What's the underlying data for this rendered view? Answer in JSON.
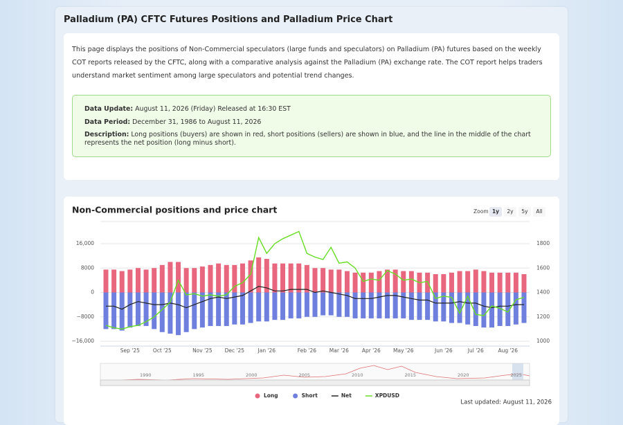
{
  "page": {
    "title": "Palladium (PA) CFTC Futures Positions and Palladium Price Chart",
    "intro": "This page displays the positions of Non-Commercial speculators (large funds and speculators) on Palladium (PA) futures based on the weekly COT reports released by the CFTC, along with a comparative analysis against the Palladium (PA) exchange rate. The COT report helps traders understand market sentiment among large speculators and potential trend changes.",
    "info": [
      {
        "label": "Data Update:",
        "text": "August 11, 2026 (Friday) Released at 16:30 EST"
      },
      {
        "label": "Data Period:",
        "text": "December 31, 1986 to August 11, 2026"
      },
      {
        "label": "Description:",
        "text": "Long positions (buyers) are shown in red, short positions (sellers) are shown in blue, and the line in the middle of the chart represents the net position (long minus short)."
      }
    ],
    "last_updated": "Last updated: August 11, 2026"
  },
  "chart_data": {
    "type": "bar",
    "title": "Non-Commercial positions and price chart",
    "zoom_label": "Zoom",
    "zoom_buttons": [
      "1y",
      "2y",
      "5y",
      "All"
    ],
    "categories": [
      null,
      null,
      null,
      "Sep '25",
      null,
      null,
      null,
      "Oct '25",
      null,
      null,
      null,
      null,
      "Nov '25",
      null,
      null,
      null,
      "Dec '25",
      null,
      null,
      null,
      "Jan '26",
      null,
      null,
      null,
      null,
      "Feb '26",
      null,
      null,
      null,
      "Mar '26",
      null,
      null,
      null,
      "Apr '26",
      null,
      null,
      null,
      "May '26",
      null,
      null,
      null,
      null,
      "Jun '26",
      null,
      null,
      null,
      "Jul '26",
      null,
      null,
      null,
      "Aug '26",
      null,
      null
    ],
    "series": [
      {
        "name": "Long",
        "type": "bar",
        "color": "#e8677f",
        "values": [
          7500,
          7500,
          7000,
          7500,
          8000,
          7500,
          8000,
          9000,
          10000,
          10000,
          8000,
          8000,
          8500,
          9000,
          9500,
          9000,
          9000,
          9500,
          10500,
          11500,
          11000,
          9500,
          9500,
          9500,
          9500,
          9000,
          8000,
          8000,
          7500,
          7500,
          7000,
          6500,
          6500,
          6500,
          7000,
          7500,
          7500,
          7000,
          7000,
          6500,
          6500,
          6000,
          6000,
          6500,
          7000,
          7000,
          7500,
          7000,
          6500,
          6500,
          6500,
          6500,
          6000
        ]
      },
      {
        "name": "Short",
        "type": "bar",
        "color": "#6f7fdd",
        "values": [
          -12000,
          -12000,
          -12500,
          -11500,
          -11000,
          -11000,
          -12000,
          -13000,
          -13500,
          -14000,
          -13000,
          -12000,
          -11500,
          -11000,
          -11000,
          -11000,
          -10500,
          -10500,
          -10000,
          -9500,
          -9500,
          -9000,
          -9000,
          -8500,
          -8500,
          -8000,
          -8000,
          -7500,
          -7500,
          -8000,
          -8000,
          -8500,
          -8500,
          -8500,
          -8500,
          -8500,
          -8500,
          -8500,
          -9000,
          -9000,
          -9000,
          -9500,
          -9500,
          -10000,
          -10000,
          -10500,
          -11000,
          -11500,
          -11500,
          -11000,
          -11000,
          -10500,
          -10000
        ]
      },
      {
        "name": "Net",
        "type": "line",
        "color": "#222222",
        "values": [
          -4500,
          -4500,
          -5500,
          -4000,
          -3000,
          -3500,
          -4000,
          -4000,
          -3500,
          -4000,
          -5000,
          -4000,
          -3000,
          -2000,
          -1500,
          -2000,
          -1500,
          -1000,
          500,
          2000,
          1500,
          500,
          500,
          1000,
          1000,
          1000,
          0,
          500,
          0,
          -500,
          -1000,
          -2000,
          -2000,
          -2000,
          -1500,
          -1000,
          -1000,
          -1500,
          -2000,
          -2500,
          -2500,
          -3500,
          -3500,
          -3500,
          -3000,
          -3500,
          -3500,
          -4500,
          -5000,
          -4500,
          -4500,
          -4000,
          -4000
        ]
      },
      {
        "name": "XPDUSD",
        "type": "line",
        "axis": "y2",
        "color": "#66dd22",
        "values": [
          1130,
          1110,
          1100,
          1120,
          1130,
          1160,
          1200,
          1260,
          1320,
          1500,
          1380,
          1390,
          1370,
          1380,
          1370,
          1380,
          1450,
          1480,
          1550,
          1850,
          1720,
          1800,
          1840,
          1870,
          1900,
          1720,
          1690,
          1670,
          1770,
          1640,
          1650,
          1600,
          1490,
          1510,
          1500,
          1580,
          1550,
          1500,
          1510,
          1480,
          1490,
          1350,
          1370,
          1360,
          1230,
          1370,
          1220,
          1210,
          1290,
          1270,
          1240,
          1340,
          1360
        ]
      }
    ],
    "ylim": [
      -16000,
      16000
    ],
    "yticks": [
      {
        "value": -16000,
        "label": "−16,000"
      },
      {
        "value": -8000,
        "label": "−8000"
      },
      0,
      8000,
      {
        "value": 16000,
        "label": "16,000"
      }
    ],
    "y2lim": [
      1000,
      1800
    ],
    "y2ticks": [
      1000,
      1200,
      1400,
      1600,
      1800
    ],
    "grid": true,
    "navigator_labels": [
      "1990",
      "1995",
      "2000",
      "2005",
      "2010",
      "2015",
      "2020",
      "2025"
    ]
  }
}
